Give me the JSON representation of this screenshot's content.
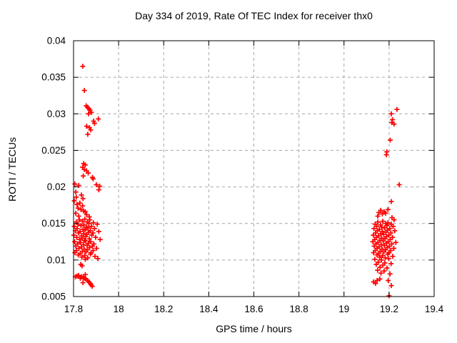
{
  "chart_data": {
    "type": "scatter",
    "title": "Day 334 of 2019, Rate Of TEC Index for receiver thx0",
    "xlabel": "GPS time / hours",
    "ylabel": "ROTI / TECUs",
    "xlim": [
      17.8,
      19.4
    ],
    "ylim": [
      0.005,
      0.04
    ],
    "grid": true,
    "legend": "none",
    "marker": {
      "shape": "plus",
      "color": "#ff0000",
      "size": 7
    },
    "xticks": [
      {
        "v": 17.8,
        "label": "17.8"
      },
      {
        "v": 18.0,
        "label": "18"
      },
      {
        "v": 18.2,
        "label": "18.2"
      },
      {
        "v": 18.4,
        "label": "18.4"
      },
      {
        "v": 18.6,
        "label": "18.6"
      },
      {
        "v": 18.8,
        "label": "18.8"
      },
      {
        "v": 19.0,
        "label": "19"
      },
      {
        "v": 19.2,
        "label": "19.2"
      },
      {
        "v": 19.4,
        "label": "19.4"
      }
    ],
    "yticks": [
      {
        "v": 0.005,
        "label": "0.005"
      },
      {
        "v": 0.01,
        "label": "0.01"
      },
      {
        "v": 0.015,
        "label": "0.015"
      },
      {
        "v": 0.02,
        "label": "0.02"
      },
      {
        "v": 0.025,
        "label": "0.025"
      },
      {
        "v": 0.03,
        "label": "0.03"
      },
      {
        "v": 0.035,
        "label": "0.035"
      },
      {
        "v": 0.04,
        "label": "0.04"
      }
    ],
    "points": [
      [
        17.841,
        0.0365
      ],
      [
        17.848,
        0.0332
      ],
      [
        17.856,
        0.0311
      ],
      [
        17.862,
        0.0309
      ],
      [
        17.868,
        0.0307
      ],
      [
        17.873,
        0.0305
      ],
      [
        17.879,
        0.0302
      ],
      [
        17.866,
        0.03
      ],
      [
        17.91,
        0.0293
      ],
      [
        17.889,
        0.029
      ],
      [
        17.893,
        0.0287
      ],
      [
        17.858,
        0.0283
      ],
      [
        17.871,
        0.0281
      ],
      [
        17.876,
        0.0278
      ],
      [
        17.863,
        0.0272
      ],
      [
        17.845,
        0.0232
      ],
      [
        17.852,
        0.023
      ],
      [
        17.84,
        0.0227
      ],
      [
        17.847,
        0.0224
      ],
      [
        17.858,
        0.0222
      ],
      [
        17.865,
        0.0219
      ],
      [
        17.843,
        0.0215
      ],
      [
        17.884,
        0.0213
      ],
      [
        17.887,
        0.0211
      ],
      [
        17.806,
        0.0204
      ],
      [
        17.823,
        0.0202
      ],
      [
        17.901,
        0.0203
      ],
      [
        17.916,
        0.0201
      ],
      [
        17.912,
        0.0196
      ],
      [
        17.81,
        0.0193
      ],
      [
        17.835,
        0.0189
      ],
      [
        17.812,
        0.0186
      ],
      [
        17.842,
        0.0184
      ],
      [
        17.803,
        0.0181
      ],
      [
        17.828,
        0.0178
      ],
      [
        17.815,
        0.0176
      ],
      [
        17.84,
        0.0174
      ],
      [
        17.82,
        0.0171
      ],
      [
        17.833,
        0.0169
      ],
      [
        17.845,
        0.0167
      ],
      [
        17.852,
        0.0166
      ],
      [
        17.81,
        0.0164
      ],
      [
        17.858,
        0.0162
      ],
      [
        17.823,
        0.016
      ],
      [
        17.87,
        0.0159
      ],
      [
        17.826,
        0.0155
      ],
      [
        17.85,
        0.0156
      ],
      [
        17.872,
        0.0155
      ],
      [
        17.812,
        0.0152
      ],
      [
        17.84,
        0.0153
      ],
      [
        17.861,
        0.0152
      ],
      [
        17.888,
        0.0151
      ],
      [
        17.82,
        0.0149
      ],
      [
        17.846,
        0.0148
      ],
      [
        17.868,
        0.015
      ],
      [
        17.905,
        0.0149
      ],
      [
        17.803,
        0.0146
      ],
      [
        17.833,
        0.0147
      ],
      [
        17.857,
        0.0145
      ],
      [
        17.879,
        0.0146
      ],
      [
        17.816,
        0.0143
      ],
      [
        17.842,
        0.0142
      ],
      [
        17.864,
        0.0144
      ],
      [
        17.893,
        0.0143
      ],
      [
        17.808,
        0.014
      ],
      [
        17.829,
        0.0139
      ],
      [
        17.851,
        0.0141
      ],
      [
        17.874,
        0.014
      ],
      [
        17.912,
        0.0139
      ],
      [
        17.822,
        0.0137
      ],
      [
        17.845,
        0.0136
      ],
      [
        17.867,
        0.0138
      ],
      [
        17.886,
        0.0137
      ],
      [
        17.801,
        0.0134
      ],
      [
        17.836,
        0.0133
      ],
      [
        17.859,
        0.0135
      ],
      [
        17.881,
        0.0134
      ],
      [
        17.814,
        0.0131
      ],
      [
        17.838,
        0.013
      ],
      [
        17.854,
        0.0132
      ],
      [
        17.898,
        0.0131
      ],
      [
        17.827,
        0.0128
      ],
      [
        17.848,
        0.0127
      ],
      [
        17.87,
        0.0129
      ],
      [
        17.918,
        0.0128
      ],
      [
        17.805,
        0.0125
      ],
      [
        17.831,
        0.0124
      ],
      [
        17.853,
        0.0126
      ],
      [
        17.876,
        0.0125
      ],
      [
        17.818,
        0.0122
      ],
      [
        17.844,
        0.0121
      ],
      [
        17.866,
        0.0123
      ],
      [
        17.89,
        0.0122
      ],
      [
        17.81,
        0.0119
      ],
      [
        17.835,
        0.0118
      ],
      [
        17.86,
        0.012
      ],
      [
        17.884,
        0.0119
      ],
      [
        17.824,
        0.0116
      ],
      [
        17.847,
        0.0115
      ],
      [
        17.871,
        0.0117
      ],
      [
        17.902,
        0.0116
      ],
      [
        17.813,
        0.0113
      ],
      [
        17.839,
        0.0112
      ],
      [
        17.862,
        0.0114
      ],
      [
        17.887,
        0.0113
      ],
      [
        17.806,
        0.011
      ],
      [
        17.83,
        0.0109
      ],
      [
        17.855,
        0.0111
      ],
      [
        17.878,
        0.011
      ],
      [
        17.821,
        0.0107
      ],
      [
        17.849,
        0.0106
      ],
      [
        17.875,
        0.0108
      ],
      [
        17.837,
        0.0104
      ],
      [
        17.863,
        0.0103
      ],
      [
        17.895,
        0.0105
      ],
      [
        17.852,
        0.0101
      ],
      [
        17.908,
        0.0102
      ],
      [
        17.832,
        0.0094
      ],
      [
        17.838,
        0.0092
      ],
      [
        17.808,
        0.0077
      ],
      [
        17.815,
        0.0078
      ],
      [
        17.822,
        0.0079
      ],
      [
        17.83,
        0.0075
      ],
      [
        17.836,
        0.0077
      ],
      [
        17.843,
        0.0076
      ],
      [
        17.849,
        0.0075
      ],
      [
        17.852,
        0.008
      ],
      [
        17.855,
        0.0074
      ],
      [
        17.862,
        0.0072
      ],
      [
        17.842,
        0.0069
      ],
      [
        17.868,
        0.007
      ],
      [
        17.874,
        0.0068
      ],
      [
        17.878,
        0.0066
      ],
      [
        17.883,
        0.0064
      ],
      [
        19.235,
        0.0306
      ],
      [
        19.21,
        0.03
      ],
      [
        19.215,
        0.0292
      ],
      [
        19.212,
        0.0288
      ],
      [
        19.222,
        0.0286
      ],
      [
        19.205,
        0.0264
      ],
      [
        19.19,
        0.0248
      ],
      [
        19.188,
        0.0244
      ],
      [
        19.245,
        0.0203
      ],
      [
        19.21,
        0.018
      ],
      [
        19.15,
        0.016
      ],
      [
        19.155,
        0.0165
      ],
      [
        19.163,
        0.0168
      ],
      [
        19.17,
        0.0163
      ],
      [
        19.178,
        0.0166
      ],
      [
        19.185,
        0.0164
      ],
      [
        19.195,
        0.0169
      ],
      [
        19.213,
        0.0158
      ],
      [
        19.222,
        0.0155
      ],
      [
        19.15,
        0.0152
      ],
      [
        19.172,
        0.0153
      ],
      [
        19.195,
        0.0151
      ],
      [
        19.138,
        0.0149
      ],
      [
        19.162,
        0.0148
      ],
      [
        19.185,
        0.015
      ],
      [
        19.21,
        0.0149
      ],
      [
        19.145,
        0.0146
      ],
      [
        19.168,
        0.0145
      ],
      [
        19.19,
        0.0147
      ],
      [
        19.218,
        0.0146
      ],
      [
        19.133,
        0.0143
      ],
      [
        19.157,
        0.0142
      ],
      [
        19.18,
        0.0144
      ],
      [
        19.203,
        0.0143
      ],
      [
        19.148,
        0.014
      ],
      [
        19.17,
        0.0139
      ],
      [
        19.193,
        0.0141
      ],
      [
        19.225,
        0.014
      ],
      [
        19.14,
        0.0137
      ],
      [
        19.163,
        0.0136
      ],
      [
        19.186,
        0.0138
      ],
      [
        19.208,
        0.0137
      ],
      [
        19.13,
        0.0134
      ],
      [
        19.153,
        0.0133
      ],
      [
        19.176,
        0.0135
      ],
      [
        19.199,
        0.0134
      ],
      [
        19.144,
        0.0131
      ],
      [
        19.167,
        0.013
      ],
      [
        19.189,
        0.0132
      ],
      [
        19.215,
        0.0131
      ],
      [
        19.136,
        0.0128
      ],
      [
        19.159,
        0.0127
      ],
      [
        19.182,
        0.0129
      ],
      [
        19.205,
        0.0128
      ],
      [
        19.128,
        0.0125
      ],
      [
        19.151,
        0.0124
      ],
      [
        19.174,
        0.0126
      ],
      [
        19.196,
        0.0125
      ],
      [
        19.23,
        0.0124
      ],
      [
        19.142,
        0.0122
      ],
      [
        19.165,
        0.0121
      ],
      [
        19.188,
        0.0123
      ],
      [
        19.212,
        0.0122
      ],
      [
        19.134,
        0.0119
      ],
      [
        19.156,
        0.0118
      ],
      [
        19.179,
        0.012
      ],
      [
        19.202,
        0.0119
      ],
      [
        19.147,
        0.0116
      ],
      [
        19.169,
        0.0115
      ],
      [
        19.192,
        0.0117
      ],
      [
        19.221,
        0.0116
      ],
      [
        19.139,
        0.0113
      ],
      [
        19.161,
        0.0112
      ],
      [
        19.184,
        0.0114
      ],
      [
        19.207,
        0.0113
      ],
      [
        19.131,
        0.011
      ],
      [
        19.154,
        0.0109
      ],
      [
        19.177,
        0.0111
      ],
      [
        19.2,
        0.011
      ],
      [
        19.146,
        0.0107
      ],
      [
        19.171,
        0.0106
      ],
      [
        19.194,
        0.0108
      ],
      [
        19.158,
        0.0104
      ],
      [
        19.183,
        0.0103
      ],
      [
        19.216,
        0.0105
      ],
      [
        19.137,
        0.0101
      ],
      [
        19.166,
        0.01
      ],
      [
        19.198,
        0.0102
      ],
      [
        19.152,
        0.0097
      ],
      [
        19.181,
        0.0096
      ],
      [
        19.143,
        0.0094
      ],
      [
        19.173,
        0.0093
      ],
      [
        19.209,
        0.0095
      ],
      [
        19.16,
        0.009
      ],
      [
        19.191,
        0.0089
      ],
      [
        19.149,
        0.0086
      ],
      [
        19.178,
        0.0085
      ],
      [
        19.164,
        0.0082
      ],
      [
        19.204,
        0.0081
      ],
      [
        19.131,
        0.007
      ],
      [
        19.147,
        0.0072
      ],
      [
        19.159,
        0.0074
      ],
      [
        19.14,
        0.0068
      ],
      [
        19.196,
        0.0072
      ],
      [
        19.21,
        0.0065
      ],
      [
        19.2,
        0.0051
      ]
    ]
  }
}
